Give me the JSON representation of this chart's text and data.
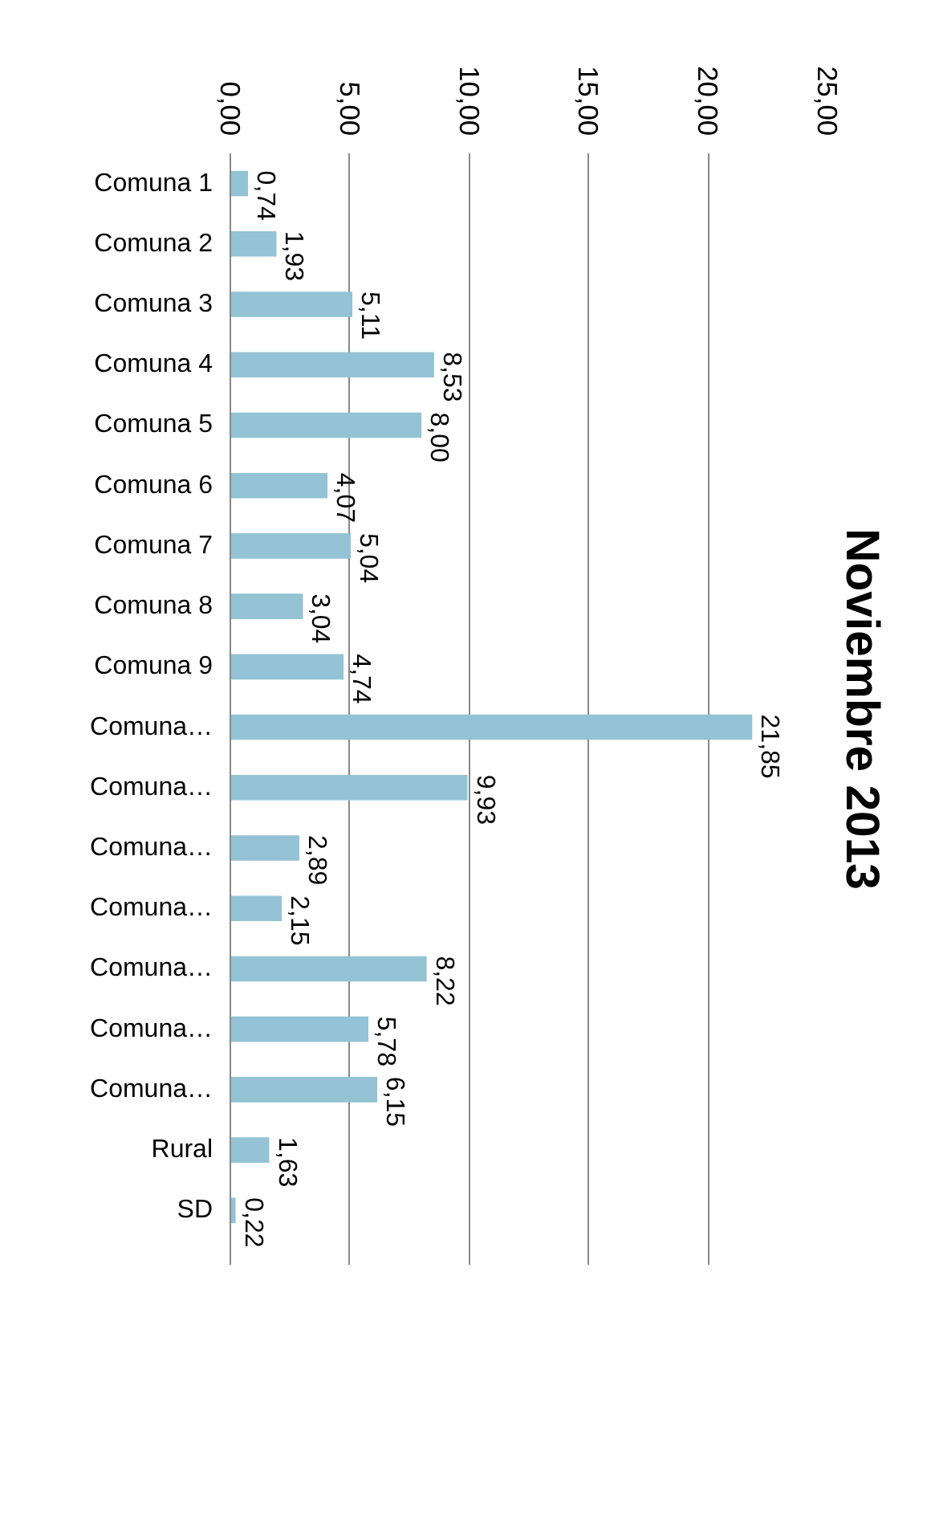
{
  "chart_data": {
    "type": "bar",
    "orientation": "horizontal",
    "title": "Noviembre 2013",
    "categories": [
      "Comuna 1",
      "Comuna 2",
      "Comuna 3",
      "Comuna 4",
      "Comuna 5",
      "Comuna 6",
      "Comuna 7",
      "Comuna 8",
      "Comuna 9",
      "Comuna…",
      "Comuna…",
      "Comuna…",
      "Comuna…",
      "Comuna…",
      "Comuna…",
      "Comuna…",
      "Rural",
      "SD"
    ],
    "values": [
      0.74,
      1.93,
      5.11,
      8.53,
      8.0,
      4.07,
      5.04,
      3.04,
      4.74,
      21.85,
      9.93,
      2.89,
      2.15,
      8.22,
      5.78,
      6.15,
      1.63,
      0.22
    ],
    "value_labels": [
      "0,74",
      "1,93",
      "5,11",
      "8,53",
      "8,00",
      "4,07",
      "5,04",
      "3,04",
      "4,74",
      "21,85",
      "9,93",
      "2,89",
      "2,15",
      "8,22",
      "5,78",
      "6,15",
      "1,63",
      "0,22"
    ],
    "color": "#93c3d5",
    "xlim": [
      0,
      25
    ],
    "xticks": [
      {
        "value": 0,
        "label": "0,00"
      },
      {
        "value": 5,
        "label": "5,00"
      },
      {
        "value": 10,
        "label": "10,00"
      },
      {
        "value": 15,
        "label": "15,00"
      },
      {
        "value": 20,
        "label": "20,00"
      },
      {
        "value": 25,
        "label": "25,00"
      }
    ],
    "grid": "x"
  }
}
